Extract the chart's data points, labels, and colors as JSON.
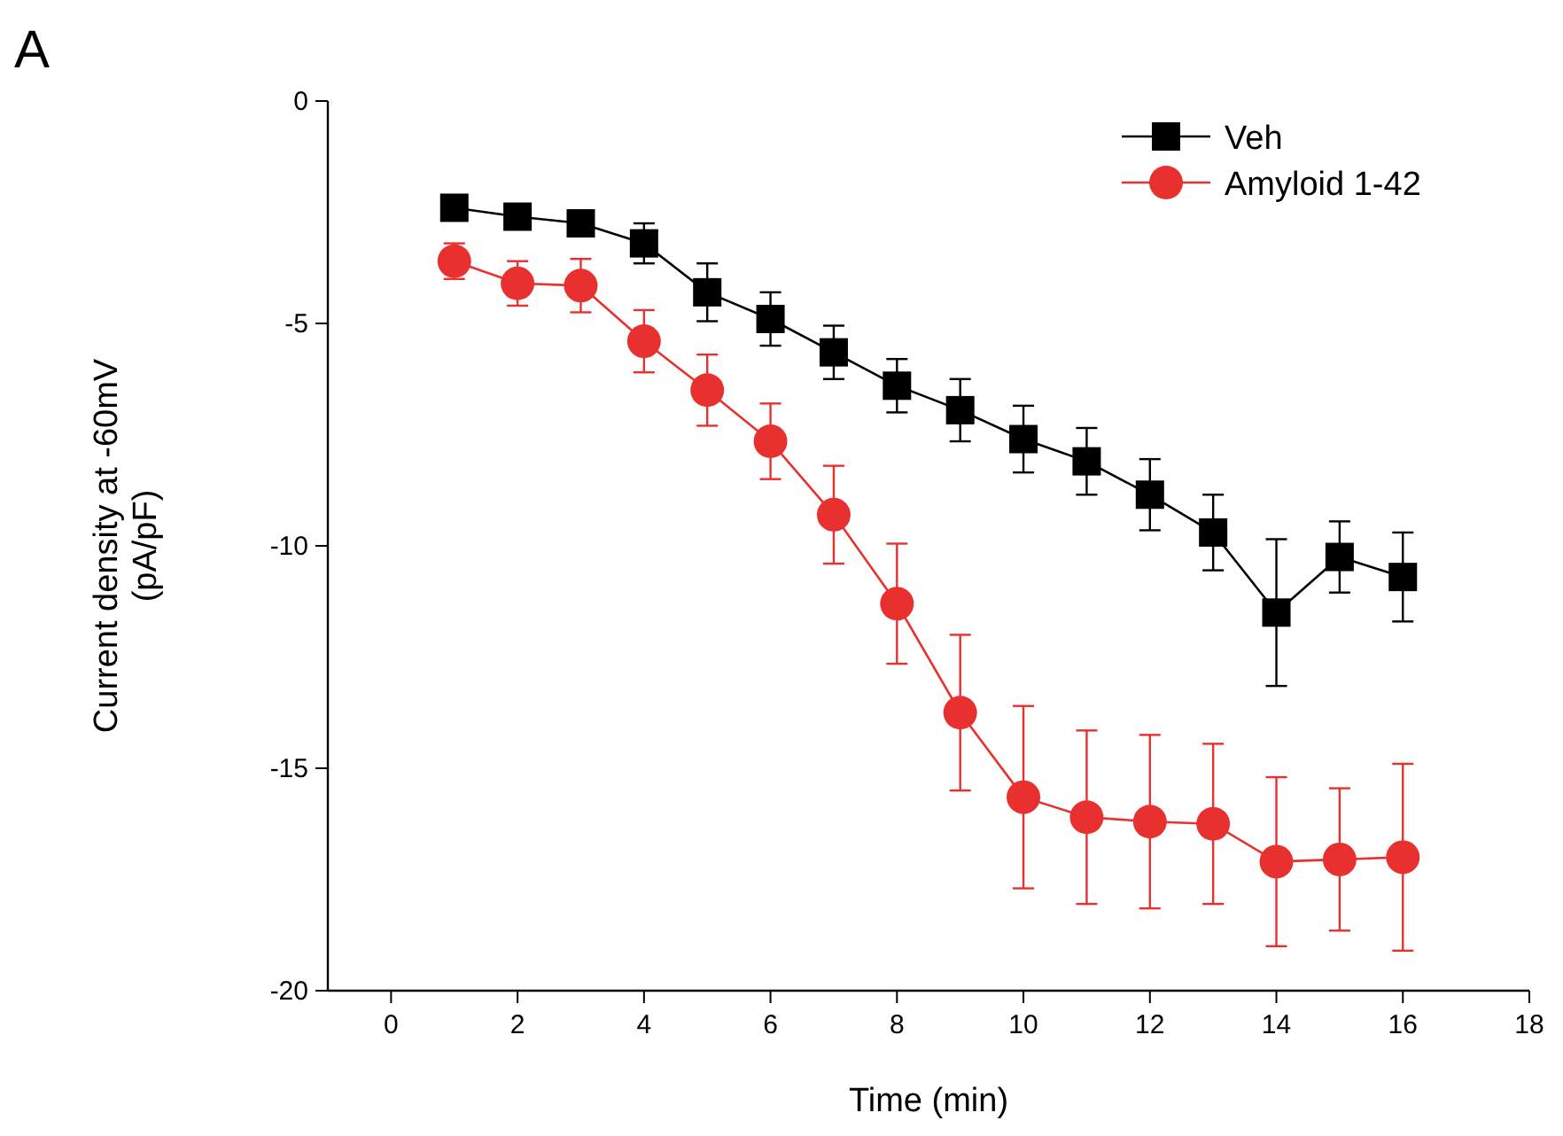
{
  "chart_data": {
    "type": "line",
    "title": "A",
    "xlabel": "Time (min)",
    "ylabel": "Current density at -60mV\n(pA/pF)",
    "x": [
      1,
      2,
      3,
      4,
      5,
      6,
      7,
      8,
      9,
      10,
      11,
      12,
      13,
      14,
      15,
      16
    ],
    "xlim": [
      -1,
      18
    ],
    "xticks": [
      0,
      2,
      4,
      6,
      8,
      10,
      12,
      14,
      16,
      18
    ],
    "ylim": [
      -20,
      0
    ],
    "yticks": [
      -20,
      -15,
      -10,
      -5,
      0
    ],
    "legend": "top right",
    "grid": false,
    "line_style": "solid",
    "series": [
      {
        "name": "Veh",
        "color": "#000000",
        "marker": "square",
        "values": [
          -2.4,
          -2.6,
          -2.75,
          -3.2,
          -4.3,
          -4.9,
          -5.65,
          -6.4,
          -6.95,
          -7.6,
          -8.1,
          -8.85,
          -9.7,
          -11.5,
          -10.25,
          -10.7
        ],
        "errors": [
          0.2,
          0.2,
          0.25,
          0.45,
          0.65,
          0.6,
          0.6,
          0.6,
          0.7,
          0.75,
          0.75,
          0.8,
          0.85,
          1.65,
          0.8,
          1.0
        ]
      },
      {
        "name": "Amyloid 1-42",
        "color": "#e8312f",
        "marker": "circle",
        "values": [
          -3.6,
          -4.1,
          -4.15,
          -5.4,
          -6.5,
          -7.65,
          -9.3,
          -11.3,
          -13.75,
          -15.65,
          -16.1,
          -16.2,
          -16.25,
          -17.1,
          -17.05,
          -17.0
        ],
        "errors": [
          0.4,
          0.5,
          0.6,
          0.7,
          0.8,
          0.85,
          1.1,
          1.35,
          1.75,
          2.05,
          1.95,
          1.95,
          1.8,
          1.9,
          1.6,
          2.1
        ]
      }
    ]
  }
}
